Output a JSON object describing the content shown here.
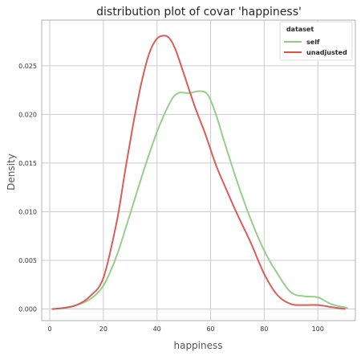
{
  "chart_data": {
    "type": "line",
    "title": "distribution plot of covar 'happiness'",
    "xlabel": "happiness",
    "ylabel": "Density",
    "xlim": [
      -3,
      114
    ],
    "ylim": [
      -0.0012,
      0.0297
    ],
    "xticks": [
      0,
      20,
      40,
      60,
      80,
      100
    ],
    "yticks": [
      0.0,
      0.005,
      0.01,
      0.015,
      0.02,
      0.025
    ],
    "ytick_labels": [
      "0.000",
      "0.005",
      "0.010",
      "0.015",
      "0.020",
      "0.025"
    ],
    "grid": true,
    "legend": {
      "title": "dataset",
      "placement": "top-right"
    },
    "series": [
      {
        "name": "self",
        "color": "#8fcc85",
        "x": [
          1,
          5,
          10,
          15,
          20,
          25,
          30,
          35,
          40,
          45,
          48,
          52,
          56,
          59,
          62,
          65,
          70,
          75,
          80,
          85,
          90,
          95,
          100,
          105,
          111
        ],
        "y": [
          0.0,
          0.0001,
          0.0004,
          0.001,
          0.0024,
          0.0055,
          0.0098,
          0.0142,
          0.0182,
          0.0213,
          0.0222,
          0.0222,
          0.0224,
          0.022,
          0.02,
          0.0173,
          0.013,
          0.0092,
          0.006,
          0.0036,
          0.0017,
          0.0013,
          0.0012,
          0.0005,
          0.0001
        ]
      },
      {
        "name": "unadjusted",
        "color": "#d9534f",
        "x": [
          1,
          5,
          10,
          15,
          20,
          25,
          28,
          31,
          34,
          37,
          40,
          43,
          45,
          47,
          50,
          54,
          58,
          62,
          66,
          70,
          75,
          80,
          85,
          90,
          95,
          100,
          105,
          110
        ],
        "y": [
          0.0,
          0.0001,
          0.0004,
          0.0013,
          0.0032,
          0.009,
          0.014,
          0.0188,
          0.023,
          0.0262,
          0.0278,
          0.0281,
          0.0277,
          0.0266,
          0.0242,
          0.0209,
          0.018,
          0.0148,
          0.0122,
          0.0097,
          0.0068,
          0.0036,
          0.0014,
          0.0005,
          0.0004,
          0.0004,
          0.0002,
          0.0
        ]
      }
    ]
  }
}
